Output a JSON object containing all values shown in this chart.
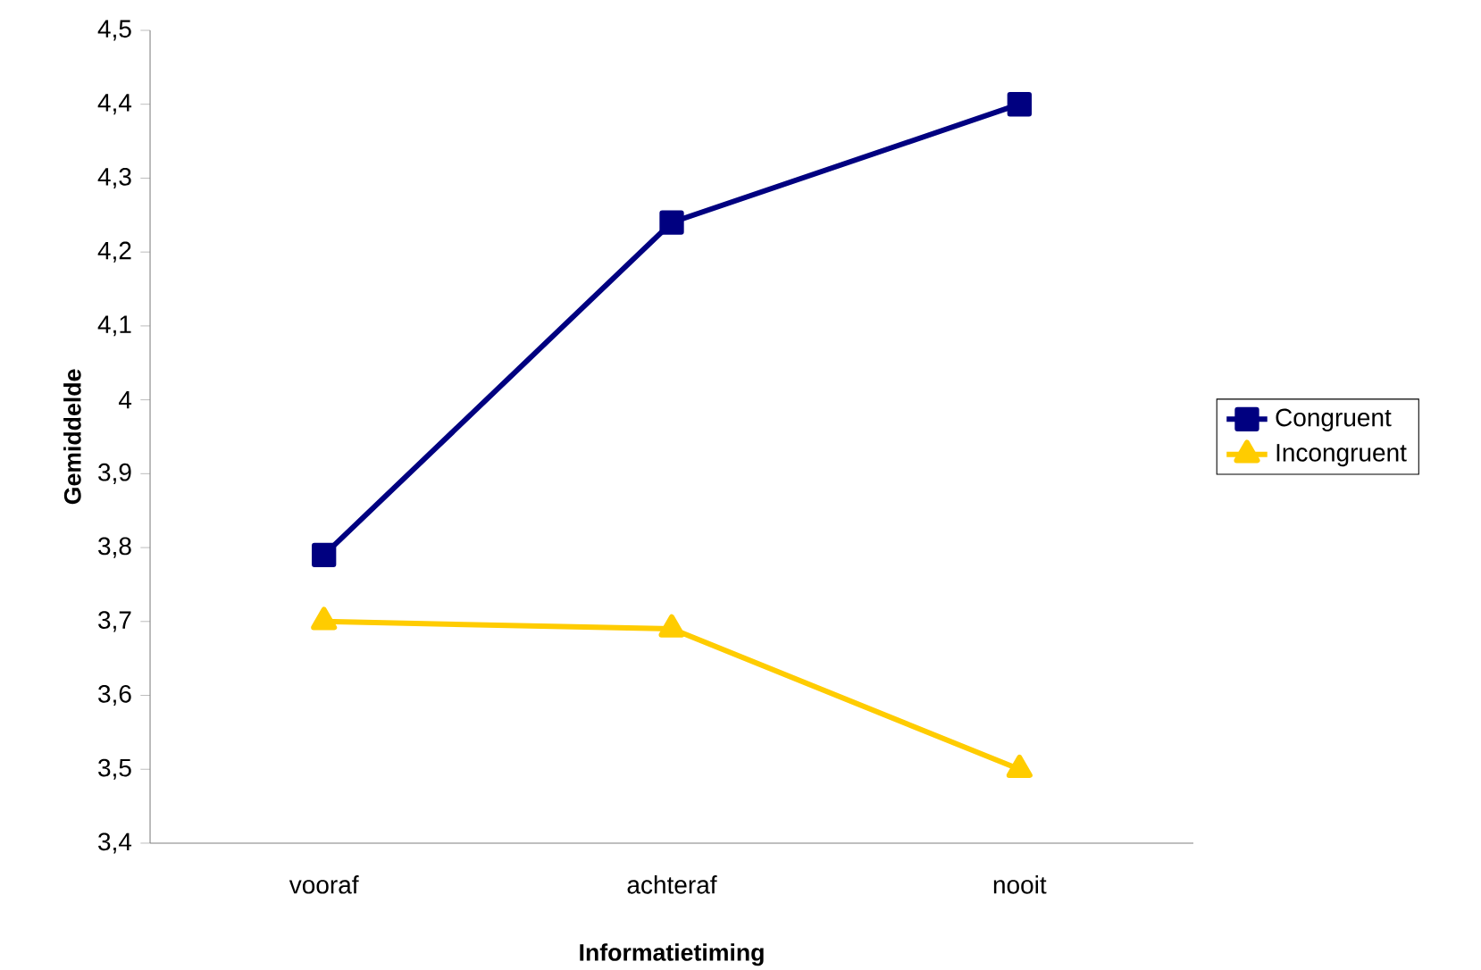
{
  "chart_data": {
    "type": "line",
    "xlabel": "Informatietiming",
    "ylabel": "Gemiddelde",
    "categories": [
      "vooraf",
      "achteraf",
      "nooit"
    ],
    "series": [
      {
        "name": "Congruent",
        "color": "#000080",
        "marker": "square",
        "values": [
          3.79,
          4.24,
          4.4
        ]
      },
      {
        "name": "Incongruent",
        "color": "#ffcc00",
        "marker": "triangle",
        "values": [
          3.7,
          3.69,
          3.5
        ]
      }
    ],
    "ylim": [
      3.4,
      4.5
    ],
    "yticks": [
      {
        "value": 3.4,
        "label": "3,4"
      },
      {
        "value": 3.5,
        "label": "3,5"
      },
      {
        "value": 3.6,
        "label": "3,6"
      },
      {
        "value": 3.7,
        "label": "3,7"
      },
      {
        "value": 3.8,
        "label": "3,8"
      },
      {
        "value": 3.9,
        "label": "3,9"
      },
      4,
      {
        "value": 4.1,
        "label": "4,1"
      },
      {
        "value": 4.2,
        "label": "4,2"
      },
      {
        "value": 4.3,
        "label": "4,3"
      },
      {
        "value": 4.4,
        "label": "4,4"
      },
      {
        "value": 4.5,
        "label": "4,5"
      }
    ],
    "grid": false,
    "legend": "right",
    "line_style": "solid"
  }
}
